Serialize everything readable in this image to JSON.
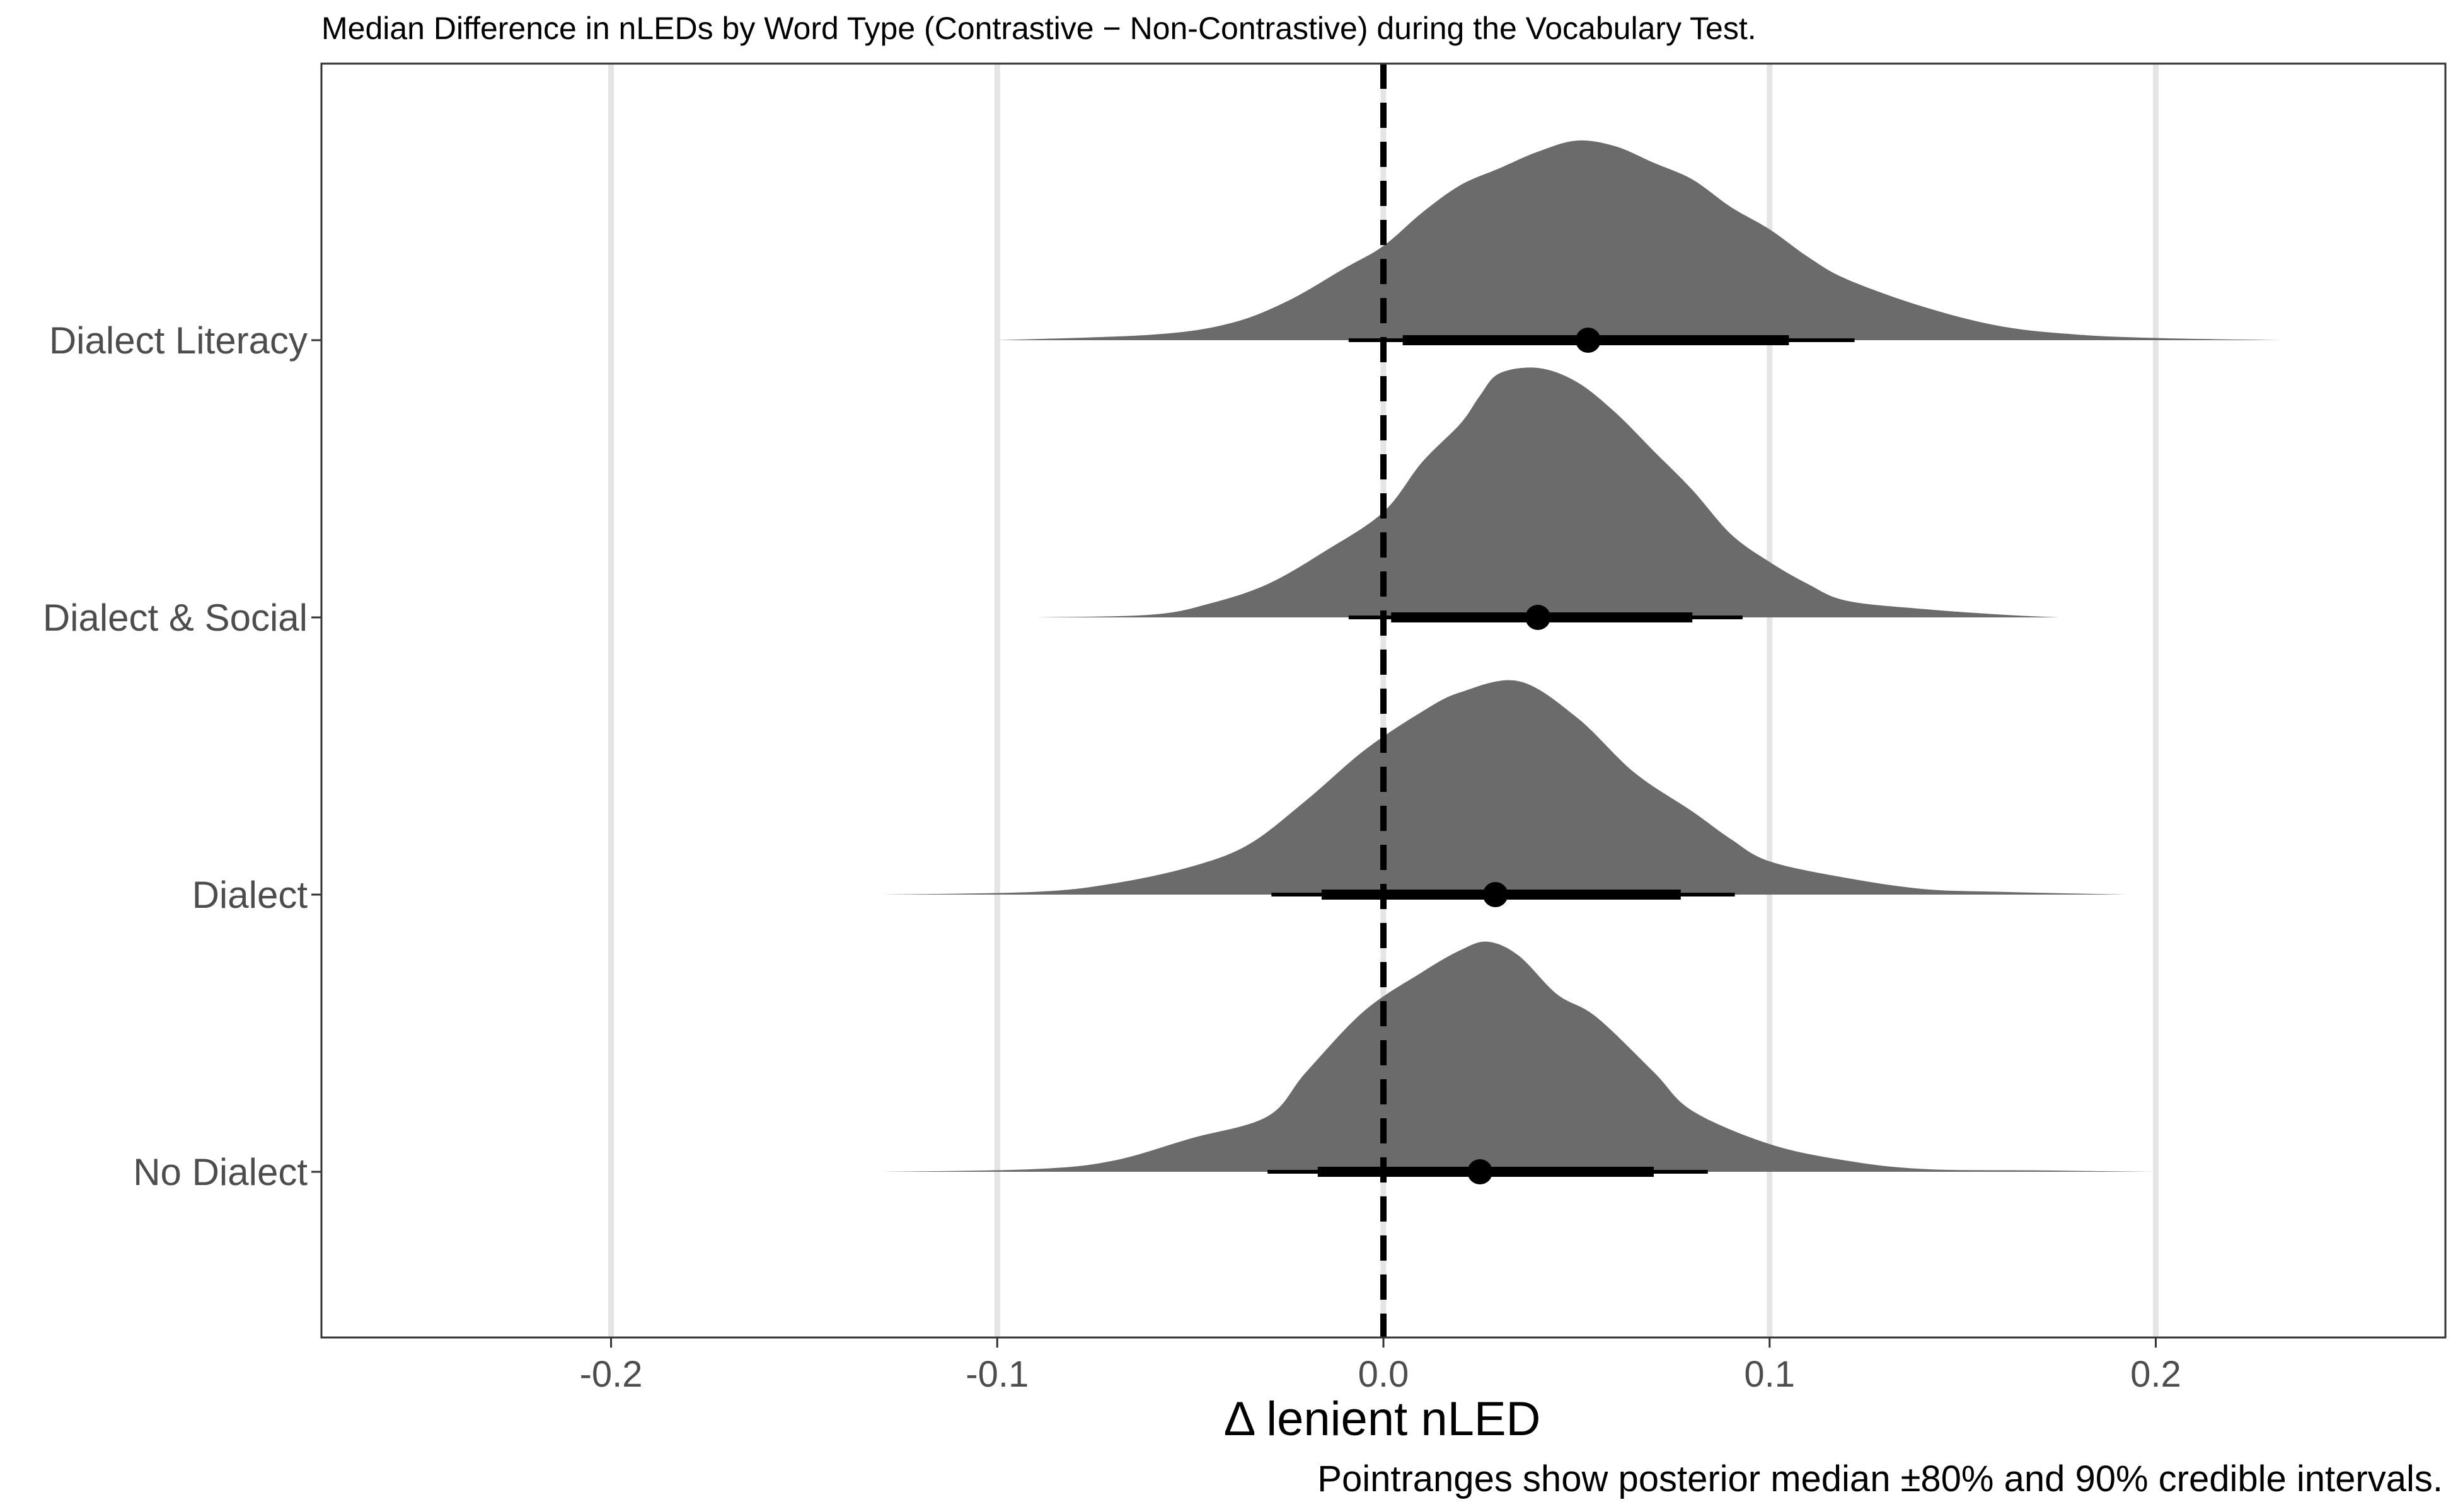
{
  "chart_data": {
    "type": "ridgeline",
    "title": "Median Difference in nLEDs by Word Type (Contrastive − Non-Contrastive) during the Vocabulary Test.",
    "xlabel": "Δ lenient nLED",
    "caption": "Pointranges show posterior median ±80% and 90% credible intervals.",
    "xlim": [
      -0.275,
      0.275
    ],
    "x_ticks": [
      -0.2,
      -0.1,
      0.0,
      0.1,
      0.2
    ],
    "x_tick_labels": [
      "-0.2",
      "-0.1",
      "0.0",
      "0.1",
      "0.2"
    ],
    "reference_line": {
      "x": 0,
      "style": "dashed"
    },
    "grid": "vertical major lines",
    "density_fill": "#6b6b6b",
    "categories": [
      "Dialect Literacy",
      "Dialect & Social",
      "Dialect",
      "No Dialect"
    ],
    "series": [
      {
        "category": "Dialect Literacy",
        "median": 0.053,
        "ci80": [
          0.005,
          0.105
        ],
        "ci90": [
          -0.009,
          0.122
        ],
        "density_range": [
          -0.1,
          0.232
        ],
        "peak_height": 0.72,
        "density_x": [
          -0.1,
          -0.06,
          -0.04,
          -0.025,
          -0.01,
          0.0,
          0.01,
          0.02,
          0.03,
          0.04,
          0.05,
          0.06,
          0.07,
          0.08,
          0.09,
          0.1,
          0.11,
          0.12,
          0.14,
          0.16,
          0.18,
          0.2,
          0.232
        ],
        "density_y": [
          0.0,
          0.02,
          0.06,
          0.14,
          0.26,
          0.34,
          0.46,
          0.56,
          0.62,
          0.68,
          0.72,
          0.7,
          0.64,
          0.58,
          0.48,
          0.4,
          0.3,
          0.22,
          0.12,
          0.05,
          0.02,
          0.008,
          0.0
        ]
      },
      {
        "category": "Dialect & Social",
        "median": 0.04,
        "ci80": [
          0.002,
          0.08
        ],
        "ci90": [
          -0.009,
          0.093
        ],
        "density_range": [
          -0.09,
          0.175
        ],
        "peak_height": 0.9,
        "density_x": [
          -0.09,
          -0.06,
          -0.045,
          -0.03,
          -0.015,
          0.0,
          0.01,
          0.02,
          0.025,
          0.03,
          0.04,
          0.05,
          0.06,
          0.07,
          0.08,
          0.09,
          0.1,
          0.11,
          0.12,
          0.14,
          0.16,
          0.175
        ],
        "density_y": [
          0.0,
          0.01,
          0.05,
          0.12,
          0.24,
          0.38,
          0.56,
          0.7,
          0.8,
          0.88,
          0.9,
          0.85,
          0.74,
          0.6,
          0.46,
          0.3,
          0.2,
          0.12,
          0.06,
          0.03,
          0.01,
          0.0
        ]
      },
      {
        "category": "Dialect",
        "median": 0.029,
        "ci80": [
          -0.016,
          0.077
        ],
        "ci90": [
          -0.029,
          0.091
        ],
        "density_range": [
          -0.13,
          0.192
        ],
        "peak_height": 0.77,
        "density_x": [
          -0.13,
          -0.09,
          -0.07,
          -0.05,
          -0.035,
          -0.02,
          -0.005,
          0.01,
          0.02,
          0.035,
          0.05,
          0.065,
          0.08,
          0.09,
          0.1,
          0.12,
          0.14,
          0.16,
          0.192
        ],
        "density_y": [
          0.0,
          0.01,
          0.04,
          0.1,
          0.18,
          0.34,
          0.52,
          0.66,
          0.73,
          0.77,
          0.64,
          0.44,
          0.3,
          0.2,
          0.12,
          0.06,
          0.02,
          0.01,
          0.0
        ]
      },
      {
        "category": "No Dialect",
        "median": 0.025,
        "ci80": [
          -0.017,
          0.07
        ],
        "ci90": [
          -0.03,
          0.084
        ],
        "density_range": [
          -0.13,
          0.2
        ],
        "peak_height": 0.83,
        "density_x": [
          -0.13,
          -0.09,
          -0.07,
          -0.05,
          -0.03,
          -0.02,
          -0.005,
          0.01,
          0.02,
          0.027,
          0.035,
          0.045,
          0.055,
          0.07,
          0.08,
          0.1,
          0.12,
          0.14,
          0.17,
          0.2
        ],
        "density_y": [
          0.0,
          0.01,
          0.04,
          0.12,
          0.2,
          0.36,
          0.58,
          0.72,
          0.8,
          0.83,
          0.78,
          0.64,
          0.56,
          0.36,
          0.22,
          0.1,
          0.04,
          0.01,
          0.005,
          0.0
        ]
      }
    ]
  }
}
